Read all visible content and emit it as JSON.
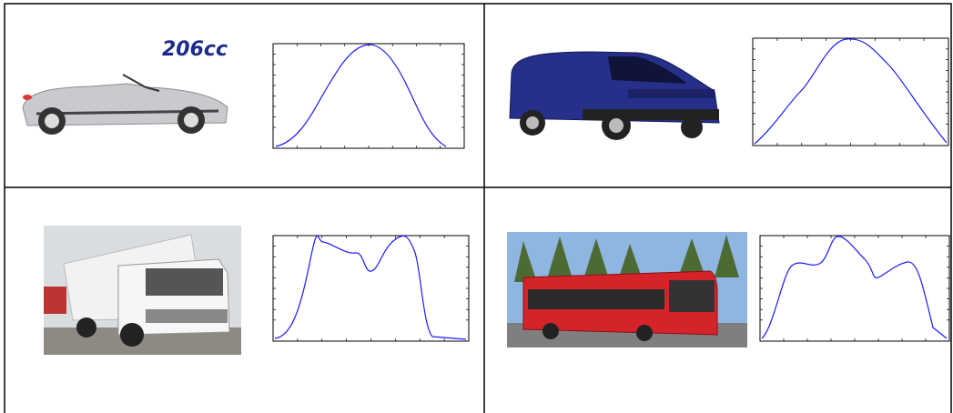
{
  "logo_text": "206cc"
}
